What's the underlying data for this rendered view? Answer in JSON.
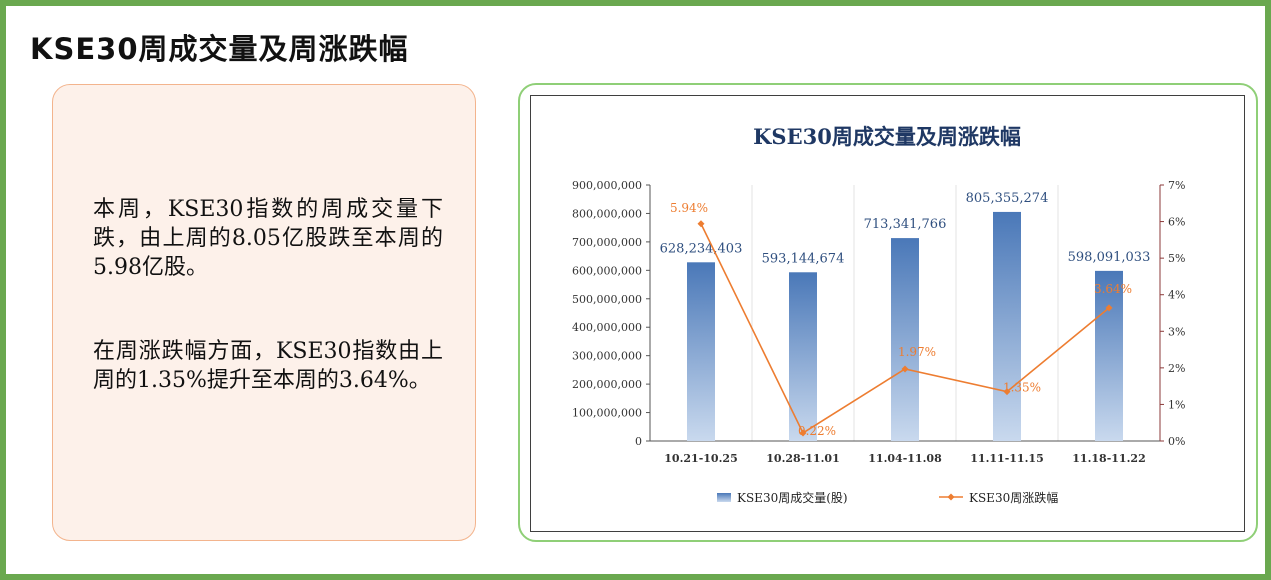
{
  "page": {
    "title": "KSE30周成交量及周涨跌幅"
  },
  "summary": {
    "paragraph1": "本周，KSE30指数的周成交量下跌，由上周的8.05亿股跌至本周的5.98亿股。",
    "paragraph2": "在周涨跌幅方面，KSE30指数由上周的1.35%提升至本周的3.64%。"
  },
  "chart_data": {
    "type": "bar",
    "title": "KSE30周成交量及周涨跌幅",
    "categories": [
      "10.21-10.25",
      "10.28-11.01",
      "11.04-11.08",
      "11.11-11.15",
      "11.18-11.22"
    ],
    "series": [
      {
        "name": "KSE30周成交量(股)",
        "type": "bar",
        "axis": "left",
        "values": [
          628234403,
          593144674,
          713341766,
          805355274,
          598091033
        ],
        "labels": [
          "628,234,403",
          "593,144,674",
          "713,341,766",
          "805,355,274",
          "598,091,033"
        ]
      },
      {
        "name": "KSE30周涨跌幅",
        "type": "line",
        "axis": "right",
        "values": [
          5.94,
          0.22,
          1.97,
          1.35,
          3.64
        ],
        "labels": [
          "5.94%",
          "0.22%",
          "1.97%",
          "1.35%",
          "3.64%"
        ]
      }
    ],
    "y_left": {
      "range": [
        0,
        900000000
      ],
      "ticks": [
        0,
        100000000,
        200000000,
        300000000,
        400000000,
        500000000,
        600000000,
        700000000,
        800000000,
        900000000
      ],
      "tick_labels": [
        "0",
        "100,000,000",
        "200,000,000",
        "300,000,000",
        "400,000,000",
        "500,000,000",
        "600,000,000",
        "700,000,000",
        "800,000,000",
        "900,000,000"
      ]
    },
    "y_right": {
      "range": [
        0,
        7
      ],
      "ticks": [
        0,
        1,
        2,
        3,
        4,
        5,
        6,
        7
      ],
      "tick_labels": [
        "0%",
        "1%",
        "2%",
        "3%",
        "4%",
        "5%",
        "6%",
        "7%"
      ]
    },
    "grid": "vertical category separators",
    "legend_position": "bottom-center",
    "colors": {
      "bar_top": "#4a78b8",
      "bar_bottom": "#c9d9ee",
      "line": "#ed7d31",
      "line_label": "#ed7d31",
      "bar_label": "#2f4f7f",
      "title": "#1f3864",
      "right_axis": "#8b3a3a"
    }
  }
}
